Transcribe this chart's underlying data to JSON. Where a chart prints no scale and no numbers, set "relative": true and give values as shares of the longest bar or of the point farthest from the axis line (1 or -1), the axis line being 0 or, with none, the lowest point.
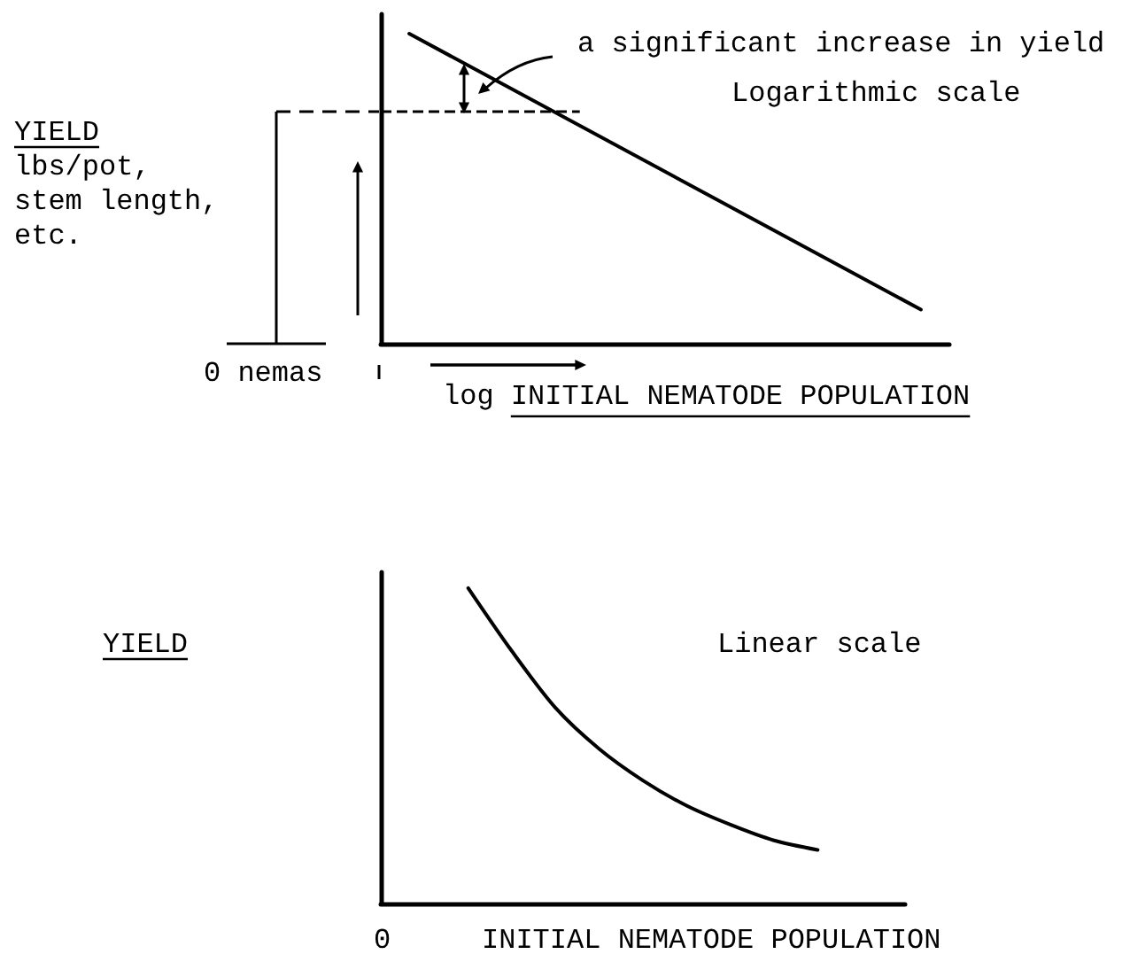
{
  "chart_data": [
    {
      "type": "line",
      "relative": true,
      "marker": "none",
      "xlabel": "log INITIAL NEMATODE POPULATION",
      "ylabel": "YIELD\nlbs/pot,\nstem length,\netc.",
      "categories": [
        null,
        null,
        null,
        null,
        null,
        null,
        null,
        null,
        null,
        null,
        null,
        null,
        null,
        null,
        null,
        null,
        null,
        null,
        null,
        null,
        null
      ],
      "series": [
        {
          "color": "#000000",
          "values": [
            null,
            1,
            null,
            null,
            null,
            null,
            null,
            null,
            null,
            null,
            null,
            null,
            null,
            null,
            null,
            null,
            null,
            null,
            null,
            0.11,
            null
          ]
        }
      ],
      "ref_lines": [
        {
          "axis": "y",
          "value": 0.75,
          "line_style": "dashed",
          "color": "#000000"
        }
      ],
      "annotations": [
        "a significant increase in yield",
        "Logarithmic scale",
        "0 nemas"
      ]
    },
    {
      "type": "line",
      "relative": true,
      "marker": "none",
      "xlabel": "INITIAL NEMATODE POPULATION",
      "ylabel": "YIELD",
      "categories": [
        null,
        null,
        null,
        null,
        null,
        null,
        null,
        null,
        null,
        null,
        null,
        null,
        null
      ],
      "series": [
        {
          "color": "#000000",
          "values": [
            null,
            null,
            1,
            0.8,
            0.62,
            0.49,
            0.39,
            0.31,
            0.25,
            0.2,
            0.17,
            null,
            null
          ]
        }
      ],
      "annotations": [
        "Linear scale",
        "0"
      ]
    }
  ]
}
